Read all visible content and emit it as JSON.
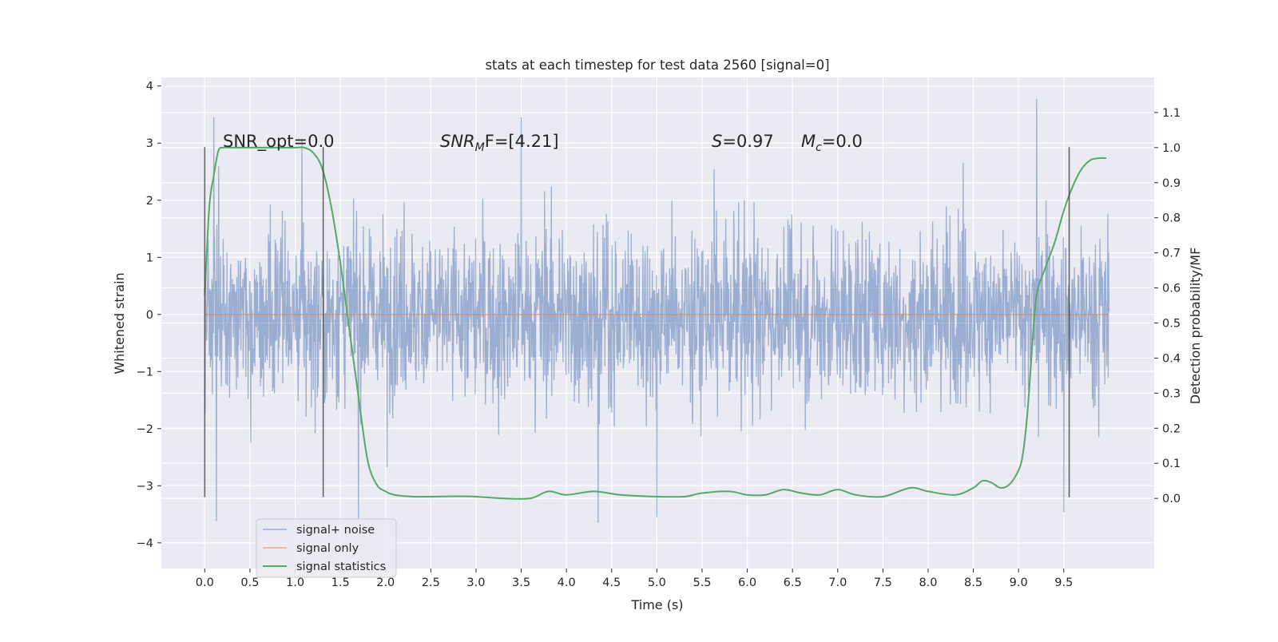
{
  "chart_data": {
    "type": "line",
    "title": "stats at each timestep for test data 2560 [signal=0]",
    "xlabel": "Time (s)",
    "ylabel_left": "Whitened strain",
    "ylabel_right": "Detection probability/MF",
    "xlim": [
      -0.48,
      10.5
    ],
    "ylim_left": [
      -4.45,
      4.15
    ],
    "ylim_right": [
      -0.2,
      1.2
    ],
    "x_ticks": [
      "0.0",
      "0.5",
      "1.0",
      "1.5",
      "2.0",
      "2.5",
      "3.0",
      "3.5",
      "4.0",
      "4.5",
      "5.0",
      "5.5",
      "6.0",
      "6.5",
      "7.0",
      "7.5",
      "8.0",
      "8.5",
      "9.0",
      "9.5"
    ],
    "y_ticks_left": [
      "−4",
      "−3",
      "−2",
      "−1",
      "0",
      "1",
      "2",
      "3",
      "4"
    ],
    "y_ticks_right": [
      "0.0",
      "0.1",
      "0.2",
      "0.3",
      "0.4",
      "0.5",
      "0.6",
      "0.7",
      "0.8",
      "0.9",
      "1.0",
      "1.1"
    ],
    "grid": true,
    "legend_position": "lower-left",
    "annotations": {
      "snr_opt": "SNR_opt=0.0",
      "snr_mf_base": "SNR",
      "snr_mf_sub": "M",
      "snr_mf_rest": "F=[4.21]",
      "s_var": "S",
      "s_val": "=0.97",
      "mc_var": "M",
      "mc_sub": "c",
      "mc_val": "=0.0"
    },
    "vertical_markers": [
      0.0,
      1.31,
      9.56
    ],
    "vertical_marker_range": [
      -3.2,
      2.93
    ],
    "series": [
      {
        "name": "signal+ noise",
        "color": "#4c72b0",
        "axis": "left",
        "x_range": [
          0.0,
          10.0
        ],
        "envelope": {
          "typical_high": 1.5,
          "typical_low": -1.6,
          "max": 3.78,
          "min": -3.62
        },
        "notable_peaks": [
          {
            "x": 0.1,
            "y": 3.45
          },
          {
            "x": 0.13,
            "y": -3.62
          },
          {
            "x": 1.7,
            "y": -3.6
          },
          {
            "x": 3.5,
            "y": 3.45
          },
          {
            "x": 4.35,
            "y": -3.65
          },
          {
            "x": 9.2,
            "y": 3.78
          },
          {
            "x": 9.5,
            "y": -3.47
          },
          {
            "x": 5.0,
            "y": -3.55
          }
        ]
      },
      {
        "name": "signal only",
        "color": "#dd8452",
        "axis": "left",
        "x": [
          0.0,
          10.0
        ],
        "values": [
          0.0,
          0.0
        ]
      },
      {
        "name": "signal statistics",
        "color": "#55a868",
        "axis": "right",
        "x": [
          0.0,
          0.05,
          0.1,
          0.15,
          0.2,
          0.3,
          0.5,
          0.8,
          1.0,
          1.1,
          1.2,
          1.3,
          1.4,
          1.5,
          1.6,
          1.7,
          1.8,
          1.9,
          2.0,
          2.1,
          2.3,
          2.5,
          2.8,
          3.0,
          3.3,
          3.6,
          3.8,
          4.0,
          4.3,
          4.6,
          5.0,
          5.3,
          5.5,
          5.8,
          6.0,
          6.2,
          6.4,
          6.6,
          6.8,
          7.0,
          7.2,
          7.5,
          7.8,
          8.0,
          8.3,
          8.5,
          8.6,
          8.7,
          8.8,
          8.9,
          9.0,
          9.05,
          9.1,
          9.15,
          9.2,
          9.3,
          9.4,
          9.5,
          9.6,
          9.7,
          9.8,
          9.9,
          9.97
        ],
        "values": [
          0.58,
          0.83,
          0.92,
          0.99,
          1.0,
          1.0,
          1.0,
          1.0,
          1.0,
          1.0,
          0.985,
          0.94,
          0.83,
          0.67,
          0.48,
          0.29,
          0.11,
          0.04,
          0.02,
          0.01,
          0.005,
          0.005,
          0.006,
          0.005,
          0.0,
          0.0,
          0.02,
          0.01,
          0.02,
          0.01,
          0.005,
          0.005,
          0.015,
          0.02,
          0.01,
          0.01,
          0.025,
          0.015,
          0.01,
          0.025,
          0.01,
          0.005,
          0.03,
          0.02,
          0.01,
          0.03,
          0.05,
          0.045,
          0.03,
          0.04,
          0.08,
          0.13,
          0.25,
          0.43,
          0.58,
          0.66,
          0.73,
          0.82,
          0.89,
          0.94,
          0.965,
          0.97,
          0.97
        ]
      }
    ]
  }
}
